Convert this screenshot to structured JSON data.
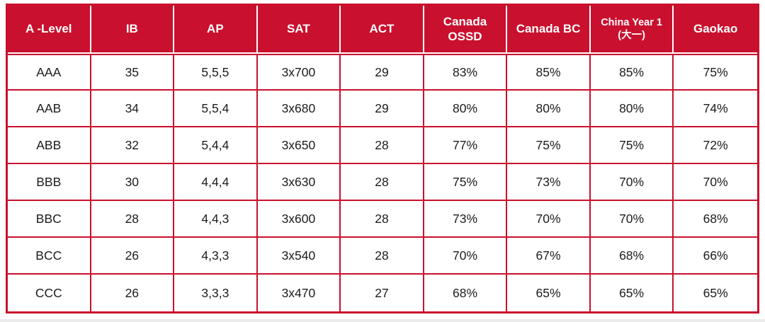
{
  "colors": {
    "accent_red": "#C9102E",
    "header_text": "#FFFFFF",
    "body_text": "#1C1C1C"
  },
  "chart_data": {
    "type": "table",
    "title": "",
    "columns": [
      "A -Level",
      "IB",
      "AP",
      "SAT",
      "ACT",
      "Canada\nOSSD",
      "Canada BC",
      "China Year 1\n(大一)",
      "Gaokao"
    ],
    "rows": [
      [
        "AAA",
        "35",
        "5,5,5",
        "3x700",
        "29",
        "83%",
        "85%",
        "85%",
        "75%"
      ],
      [
        "AAB",
        "34",
        "5,5,4",
        "3x680",
        "29",
        "80%",
        "80%",
        "80%",
        "74%"
      ],
      [
        "ABB",
        "32",
        "5,4,4",
        "3x650",
        "28",
        "77%",
        "75%",
        "75%",
        "72%"
      ],
      [
        "BBB",
        "30",
        "4,4,4",
        "3x630",
        "28",
        "75%",
        "73%",
        "70%",
        "70%"
      ],
      [
        "BBC",
        "28",
        "4,4,3",
        "3x600",
        "28",
        "73%",
        "70%",
        "70%",
        "68%"
      ],
      [
        "BCC",
        "26",
        "4,3,3",
        "3x540",
        "28",
        "70%",
        "67%",
        "68%",
        "66%"
      ],
      [
        "CCC",
        "26",
        "3,3,3",
        "3x470",
        "27",
        "68%",
        "65%",
        "65%",
        "65%"
      ]
    ]
  }
}
